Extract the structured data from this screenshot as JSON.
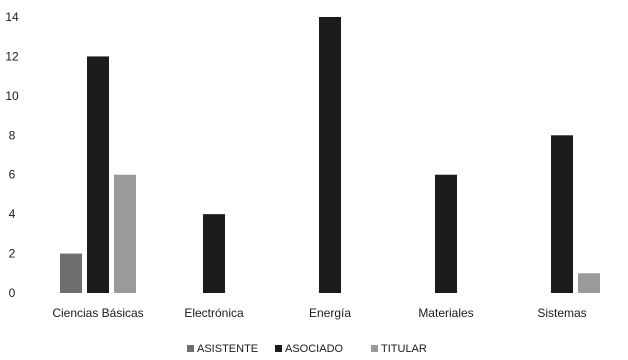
{
  "chart_data": {
    "type": "bar",
    "categories": [
      "Ciencias Básicas",
      "Electrónica",
      "Energía",
      "Materiales",
      "Sistemas"
    ],
    "series": [
      {
        "name": "ASISTENTE",
        "values": [
          2,
          0,
          0,
          0,
          0
        ],
        "color": "#6e6e6e"
      },
      {
        "name": "ASOCIADO",
        "values": [
          12,
          4,
          14,
          6,
          8
        ],
        "color": "#1c1c1c"
      },
      {
        "name": "TITULAR",
        "values": [
          6,
          0,
          0,
          0,
          1
        ],
        "color": "#9a9a9a"
      }
    ],
    "ylim": [
      0,
      14
    ],
    "yticks": [
      0,
      2,
      4,
      6,
      8,
      10,
      12,
      14
    ],
    "grid": false,
    "legend_position": "bottom"
  }
}
